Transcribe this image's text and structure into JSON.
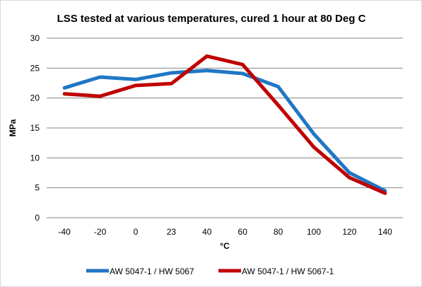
{
  "chart_data": {
    "type": "line",
    "title": "LSS tested at various temperatures, cured 1 hour at 80 Deg C",
    "xlabel": "°C",
    "ylabel": "MPa",
    "categories": [
      "-40",
      "-20",
      "0",
      "23",
      "40",
      "60",
      "80",
      "100",
      "120",
      "140"
    ],
    "ylim": [
      0,
      30
    ],
    "yticks": [
      "0",
      "5",
      "10",
      "15",
      "20",
      "25",
      "30"
    ],
    "grid": "horizontal",
    "legend": "bottom",
    "series": [
      {
        "name": "AW 5047-1 / HW 5067",
        "color": "#1f77c4",
        "values": [
          21.7,
          23.5,
          23.1,
          24.2,
          24.6,
          24.1,
          21.9,
          14.0,
          7.5,
          4.5
        ]
      },
      {
        "name": "AW 5047-1 / HW 5067-1",
        "color": "#c00000",
        "values": [
          20.7,
          20.3,
          22.1,
          22.4,
          27.0,
          25.6,
          18.8,
          11.8,
          6.7,
          4.1
        ]
      }
    ]
  }
}
